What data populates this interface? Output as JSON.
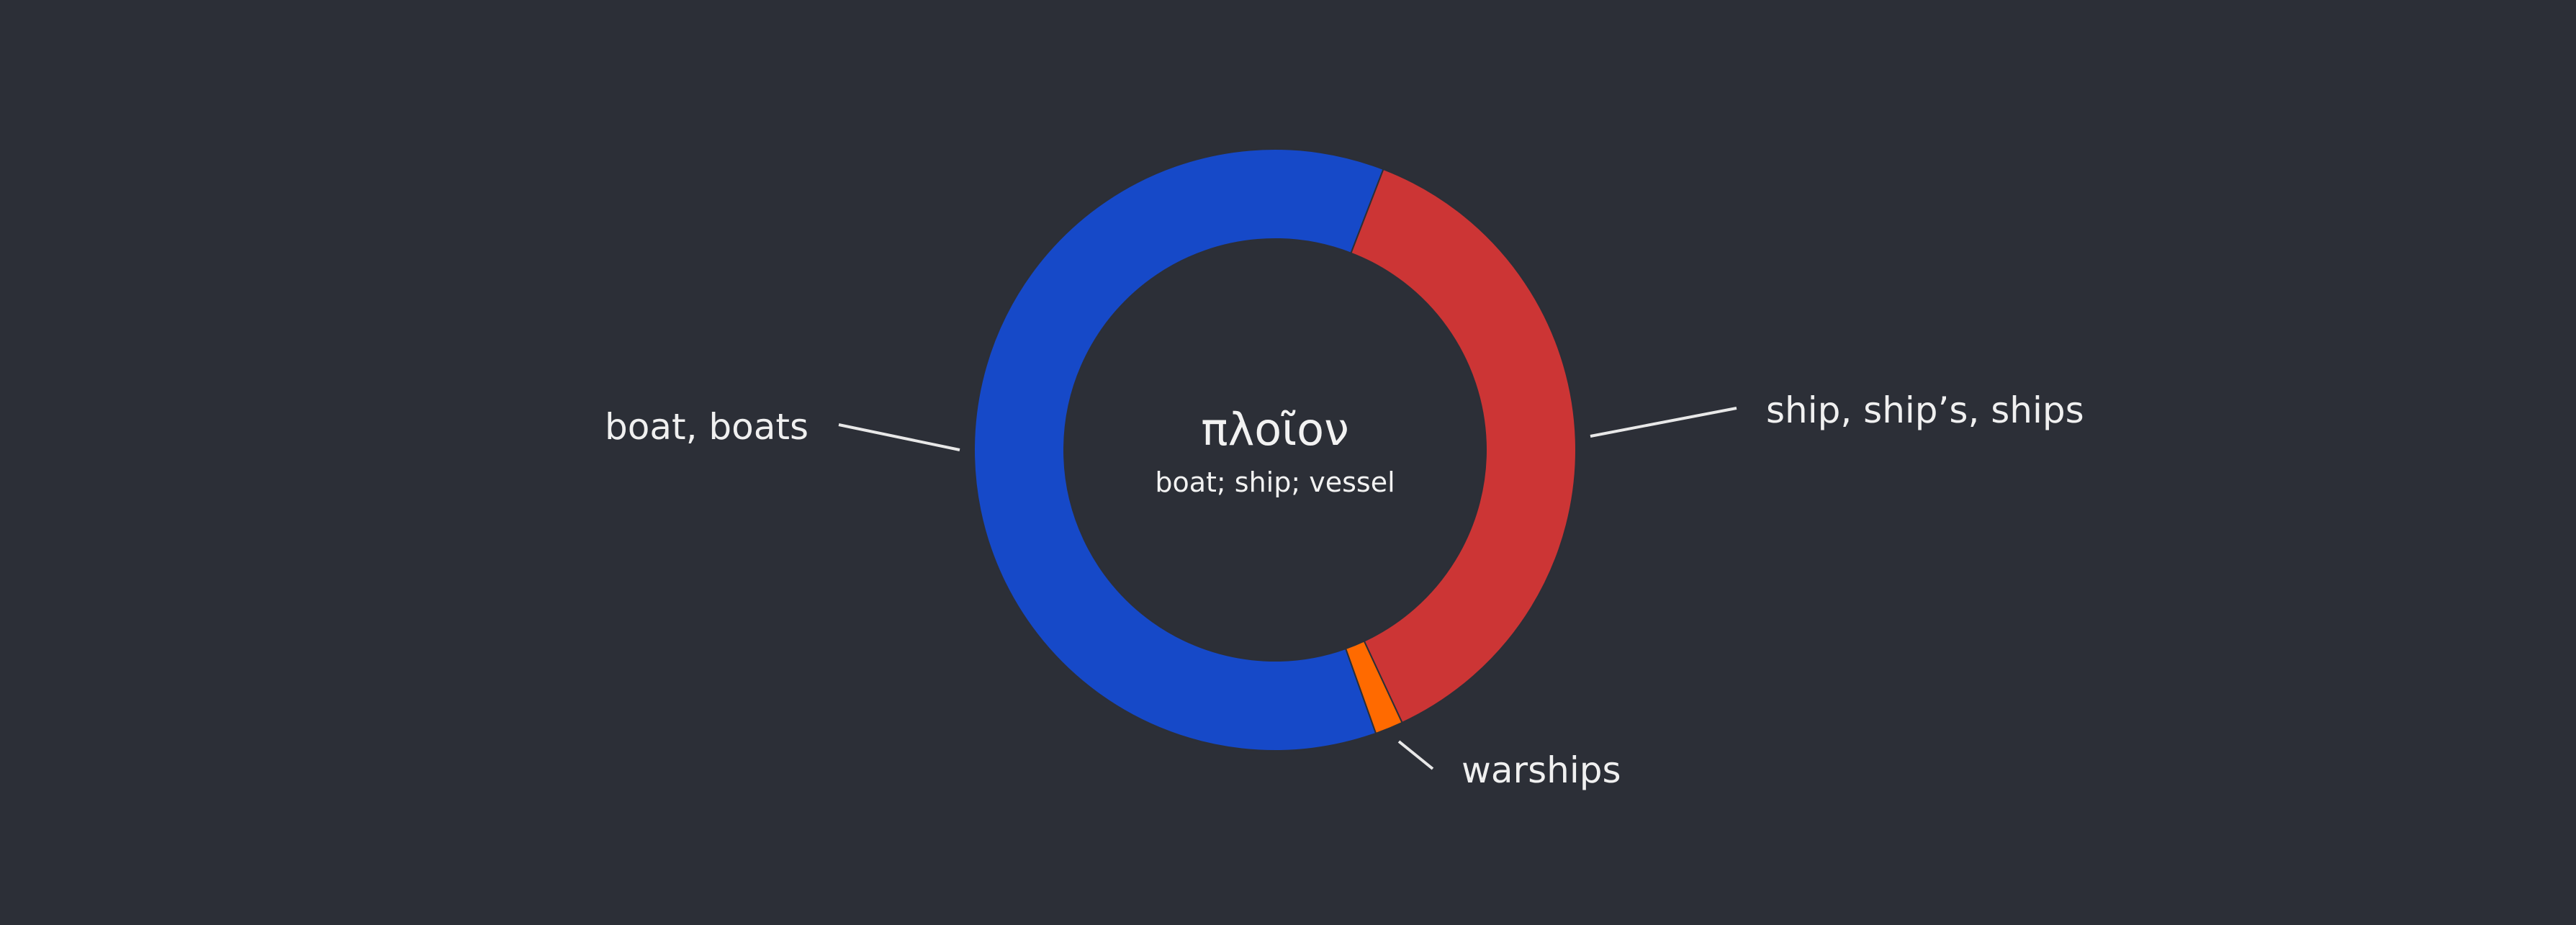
{
  "chart_data": {
    "type": "pie",
    "variant": "donut",
    "title": "πλοῖον",
    "subtitle": "boat; ship; vessel",
    "slices": [
      {
        "label": "boat, boats",
        "value": 61.3,
        "color": "#1649c8",
        "label_side": "left"
      },
      {
        "label": "ship, ship’s, ships",
        "value": 37.2,
        "color": "#cc3535",
        "label_side": "right"
      },
      {
        "label": "warships",
        "value": 1.5,
        "color": "#ff6a00",
        "label_side": "right"
      }
    ],
    "start_angle_deg": 160.3,
    "legend": "none",
    "background": "#2c2f37"
  }
}
